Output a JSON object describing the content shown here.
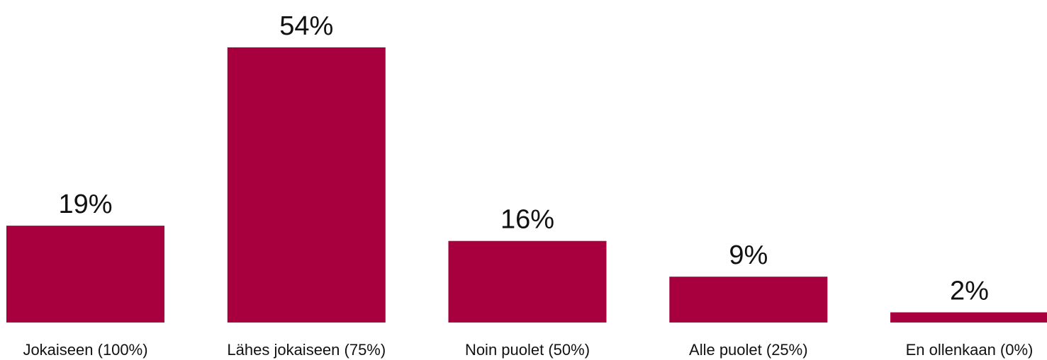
{
  "chart_data": {
    "type": "bar",
    "categories": [
      "Jokaiseen (100%)",
      "Lähes jokaiseen (75%)",
      "Noin puolet (50%)",
      "Alle puolet (25%)",
      "En ollenkaan (0%)"
    ],
    "values": [
      19,
      54,
      16,
      9,
      2
    ],
    "value_labels": [
      "19%",
      "54%",
      "16%",
      "9%",
      "2%"
    ],
    "ylim": [
      0,
      54
    ],
    "grid": false,
    "legend": "none",
    "bar_color": "#A8003F"
  }
}
